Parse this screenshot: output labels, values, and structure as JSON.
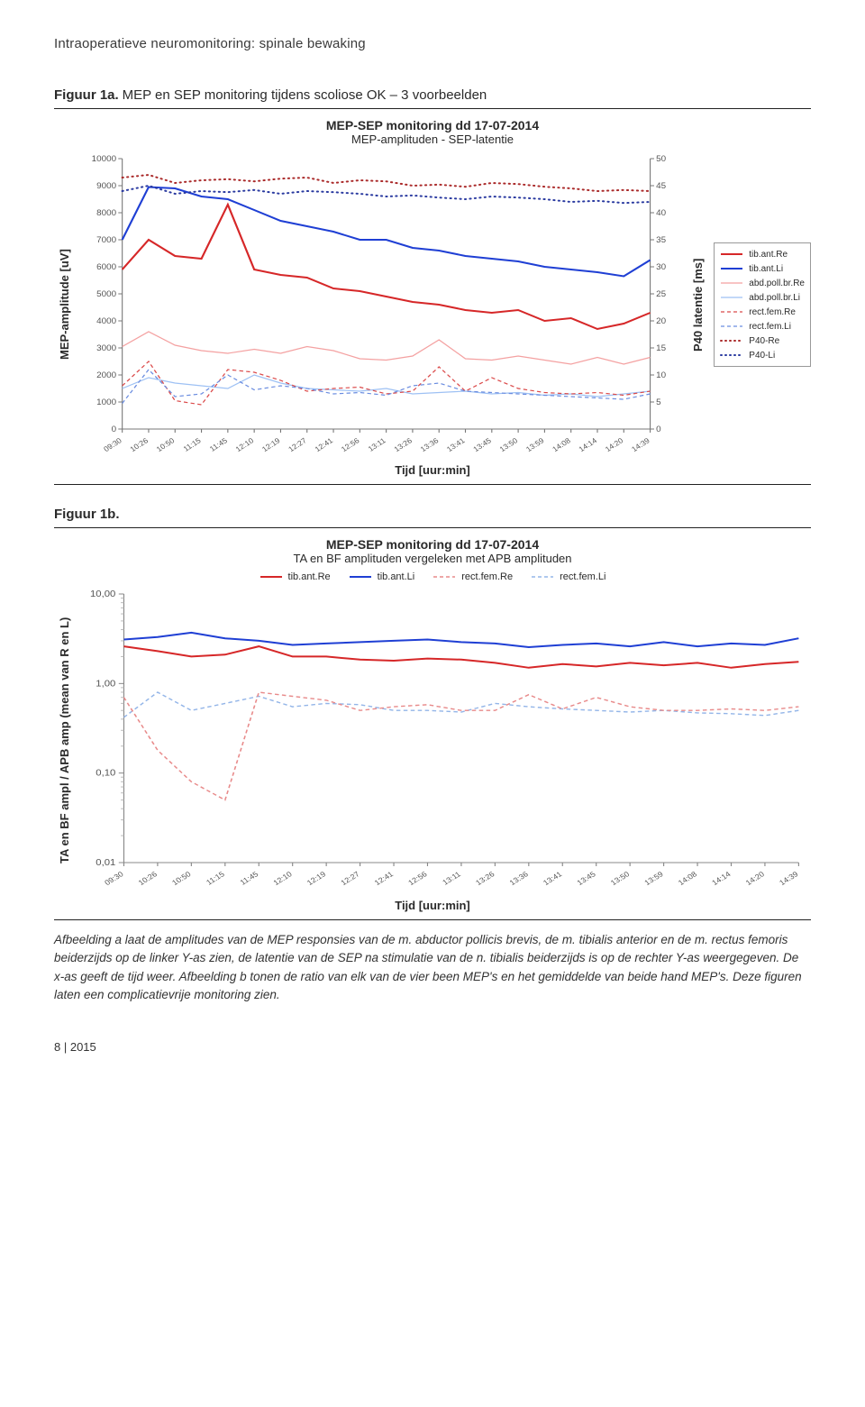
{
  "header": "Intraoperatieve neuromonitoring: spinale bewaking",
  "fig1a": {
    "label": "Figuur 1a.",
    "title": " MEP en SEP monitoring tijdens scoliose OK – 3 voorbeelden",
    "chart_title": "MEP-SEP monitoring dd 17-07-2014",
    "chart_subtitle": "MEP-amplituden - SEP-latentie",
    "y_label_left": "MEP-amplitude [uV]",
    "y_label_right": "P40 latentie [ms]",
    "x_label": "Tijd [uur:min]",
    "yleft": {
      "min": 0,
      "max": 10000,
      "step": 1000,
      "ticks": [
        0,
        1000,
        2000,
        3000,
        4000,
        5000,
        6000,
        7000,
        8000,
        9000,
        10000
      ]
    },
    "yright": {
      "min": 0,
      "max": 50,
      "step": 5,
      "ticks": [
        0,
        5,
        10,
        15,
        20,
        25,
        30,
        35,
        40,
        45,
        50
      ]
    },
    "x_ticks": [
      "09:30",
      "10:26",
      "10:50",
      "11:15",
      "11:45",
      "12:10",
      "12:19",
      "12:27",
      "12:41",
      "12:56",
      "13:11",
      "13:26",
      "13:36",
      "13:41",
      "13:45",
      "13:50",
      "13:59",
      "14:08",
      "14:14",
      "14:20",
      "14:39"
    ],
    "colors": {
      "tibantre": "#d62728",
      "tibantli": "#1f3fd4",
      "abdre": "#f4a1a1",
      "abdli": "#9ec1f4",
      "rectre": "#db4a4a",
      "rectli": "#6b8de0",
      "p40re": "#aa2a2a",
      "p40li": "#2a3aa0",
      "bg": "#ffffff",
      "axis": "#777777"
    },
    "legend": [
      {
        "key": "tib.ant.Re",
        "stroke": "#d62728",
        "dash": "",
        "w": 2
      },
      {
        "key": "tib.ant.Li",
        "stroke": "#1f3fd4",
        "dash": "",
        "w": 2
      },
      {
        "key": "abd.poll.br.Re",
        "stroke": "#f4a1a1",
        "dash": "",
        "w": 1.2
      },
      {
        "key": "abd.poll.br.Li",
        "stroke": "#9ec1f4",
        "dash": "",
        "w": 1.2
      },
      {
        "key": "rect.fem.Re",
        "stroke": "#db4a4a",
        "dash": "4 3",
        "w": 1.2
      },
      {
        "key": "rect.fem.Li",
        "stroke": "#6b8de0",
        "dash": "4 3",
        "w": 1.2
      },
      {
        "key": "P40-Re",
        "stroke": "#aa2a2a",
        "dash": "1 3",
        "w": 2,
        "dot": true
      },
      {
        "key": "P40-Li",
        "stroke": "#2a3aa0",
        "dash": "1 3",
        "w": 2,
        "dot": true
      }
    ],
    "series": {
      "tibantre": [
        5900,
        7000,
        6400,
        6300,
        8300,
        5900,
        5700,
        5600,
        5200,
        5100,
        4900,
        4700,
        4600,
        4400,
        4300,
        4400,
        4000,
        4100,
        3700,
        3900,
        4300
      ],
      "tibantli": [
        7000,
        8950,
        8900,
        8600,
        8500,
        8100,
        7700,
        7500,
        7300,
        7000,
        7000,
        6700,
        6600,
        6400,
        6300,
        6200,
        6000,
        5900,
        5800,
        5650,
        6250
      ],
      "abdre": [
        3050,
        3600,
        3100,
        2900,
        2800,
        2950,
        2800,
        3050,
        2900,
        2600,
        2550,
        2700,
        3300,
        2600,
        2550,
        2700,
        2550,
        2400,
        2650,
        2400,
        2650
      ],
      "abdli": [
        1500,
        1900,
        1700,
        1600,
        1500,
        2000,
        1700,
        1500,
        1450,
        1400,
        1500,
        1300,
        1350,
        1400,
        1300,
        1350,
        1250,
        1300,
        1200,
        1300,
        1400
      ],
      "rectre": [
        1600,
        2500,
        1050,
        900,
        2200,
        2100,
        1800,
        1400,
        1500,
        1550,
        1300,
        1400,
        2300,
        1400,
        1900,
        1500,
        1350,
        1300,
        1350,
        1250,
        1400
      ],
      "rectli": [
        950,
        2200,
        1200,
        1300,
        2000,
        1450,
        1600,
        1500,
        1300,
        1350,
        1250,
        1600,
        1700,
        1400,
        1350,
        1300,
        1250,
        1200,
        1150,
        1100,
        1300
      ],
      "p40re": [
        46.5,
        47,
        45.5,
        46,
        46.2,
        45.8,
        46.3,
        46.5,
        45.5,
        46,
        45.8,
        45,
        45.2,
        44.8,
        45.5,
        45.3,
        44.8,
        44.5,
        44,
        44.2,
        44
      ],
      "p40li": [
        44,
        45,
        43.5,
        44,
        43.8,
        44.2,
        43.5,
        44,
        43.8,
        43.5,
        43,
        43.2,
        42.8,
        42.5,
        43,
        42.8,
        42.5,
        42,
        42.2,
        41.8,
        42
      ]
    }
  },
  "fig1b": {
    "label": "Figuur 1b.",
    "chart_title": "MEP-SEP monitoring dd 17-07-2014",
    "chart_subtitle": "TA en BF amplituden vergeleken met APB amplituden",
    "y_label": "TA en BF ampl / APB amp (mean van R en L)",
    "x_label": "Tijd [uur:min]",
    "y_ticks": [
      "0,01",
      "0,10",
      "1,00",
      "10,00"
    ],
    "y_tick_vals": [
      0.01,
      0.1,
      1,
      10
    ],
    "x_ticks": [
      "09:30",
      "10:26",
      "10:50",
      "11:15",
      "11:45",
      "12:10",
      "12:19",
      "12:27",
      "12:41",
      "12:56",
      "13:11",
      "13:26",
      "13:36",
      "13:41",
      "13:45",
      "13:50",
      "13:59",
      "14:08",
      "14:14",
      "14:20",
      "14:39"
    ],
    "colors": {
      "tibantre": "#d62728",
      "tibantli": "#1f3fd4",
      "rectre": "#e88a8a",
      "rectli": "#93b5e8",
      "bg": "#ffffff",
      "grid": "#bbbbbb"
    },
    "legend": [
      {
        "key": "tib.ant.Re",
        "stroke": "#d62728",
        "dash": "",
        "w": 2
      },
      {
        "key": "tib.ant.Li",
        "stroke": "#1f3fd4",
        "dash": "",
        "w": 2
      },
      {
        "key": "rect.fem.Re",
        "stroke": "#e88a8a",
        "dash": "4 3",
        "w": 1.4
      },
      {
        "key": "rect.fem.Li",
        "stroke": "#93b5e8",
        "dash": "4 3",
        "w": 1.4
      }
    ],
    "series": {
      "tibantli": [
        3.1,
        3.3,
        3.7,
        3.2,
        3.0,
        2.7,
        2.8,
        2.9,
        3.0,
        3.1,
        2.9,
        2.8,
        2.55,
        2.7,
        2.8,
        2.6,
        2.9,
        2.6,
        2.8,
        2.7,
        3.2
      ],
      "tibantre": [
        2.6,
        2.3,
        2.0,
        2.1,
        2.6,
        2.0,
        2.0,
        1.85,
        1.8,
        1.9,
        1.85,
        1.7,
        1.5,
        1.65,
        1.55,
        1.7,
        1.6,
        1.7,
        1.5,
        1.65,
        1.75
      ],
      "rectli": [
        0.42,
        0.8,
        0.5,
        0.6,
        0.72,
        0.55,
        0.6,
        0.58,
        0.5,
        0.5,
        0.48,
        0.6,
        0.55,
        0.52,
        0.5,
        0.48,
        0.5,
        0.47,
        0.46,
        0.44,
        0.5
      ],
      "rectre": [
        0.7,
        0.18,
        0.08,
        0.05,
        0.8,
        0.72,
        0.65,
        0.5,
        0.55,
        0.58,
        0.5,
        0.5,
        0.75,
        0.52,
        0.7,
        0.55,
        0.5,
        0.5,
        0.52,
        0.5,
        0.55
      ]
    }
  },
  "caption": "Afbeelding a laat de amplitudes van de MEP responsies van de m. abductor pollicis brevis, de m. tibialis anterior en de m. rectus femoris beiderzijds op de linker Y-as zien, de latentie van de SEP na stimulatie van de n. tibialis beiderzijds is op de rechter Y-as weergegeven. De x-as geeft de tijd weer. Afbeelding b tonen de ratio van elk van de vier been MEP's en het gemiddelde van beide hand MEP's. Deze figuren laten een complicatievrije monitoring zien.",
  "footer": {
    "page": "8",
    "sep": " | ",
    "year": "2015"
  }
}
